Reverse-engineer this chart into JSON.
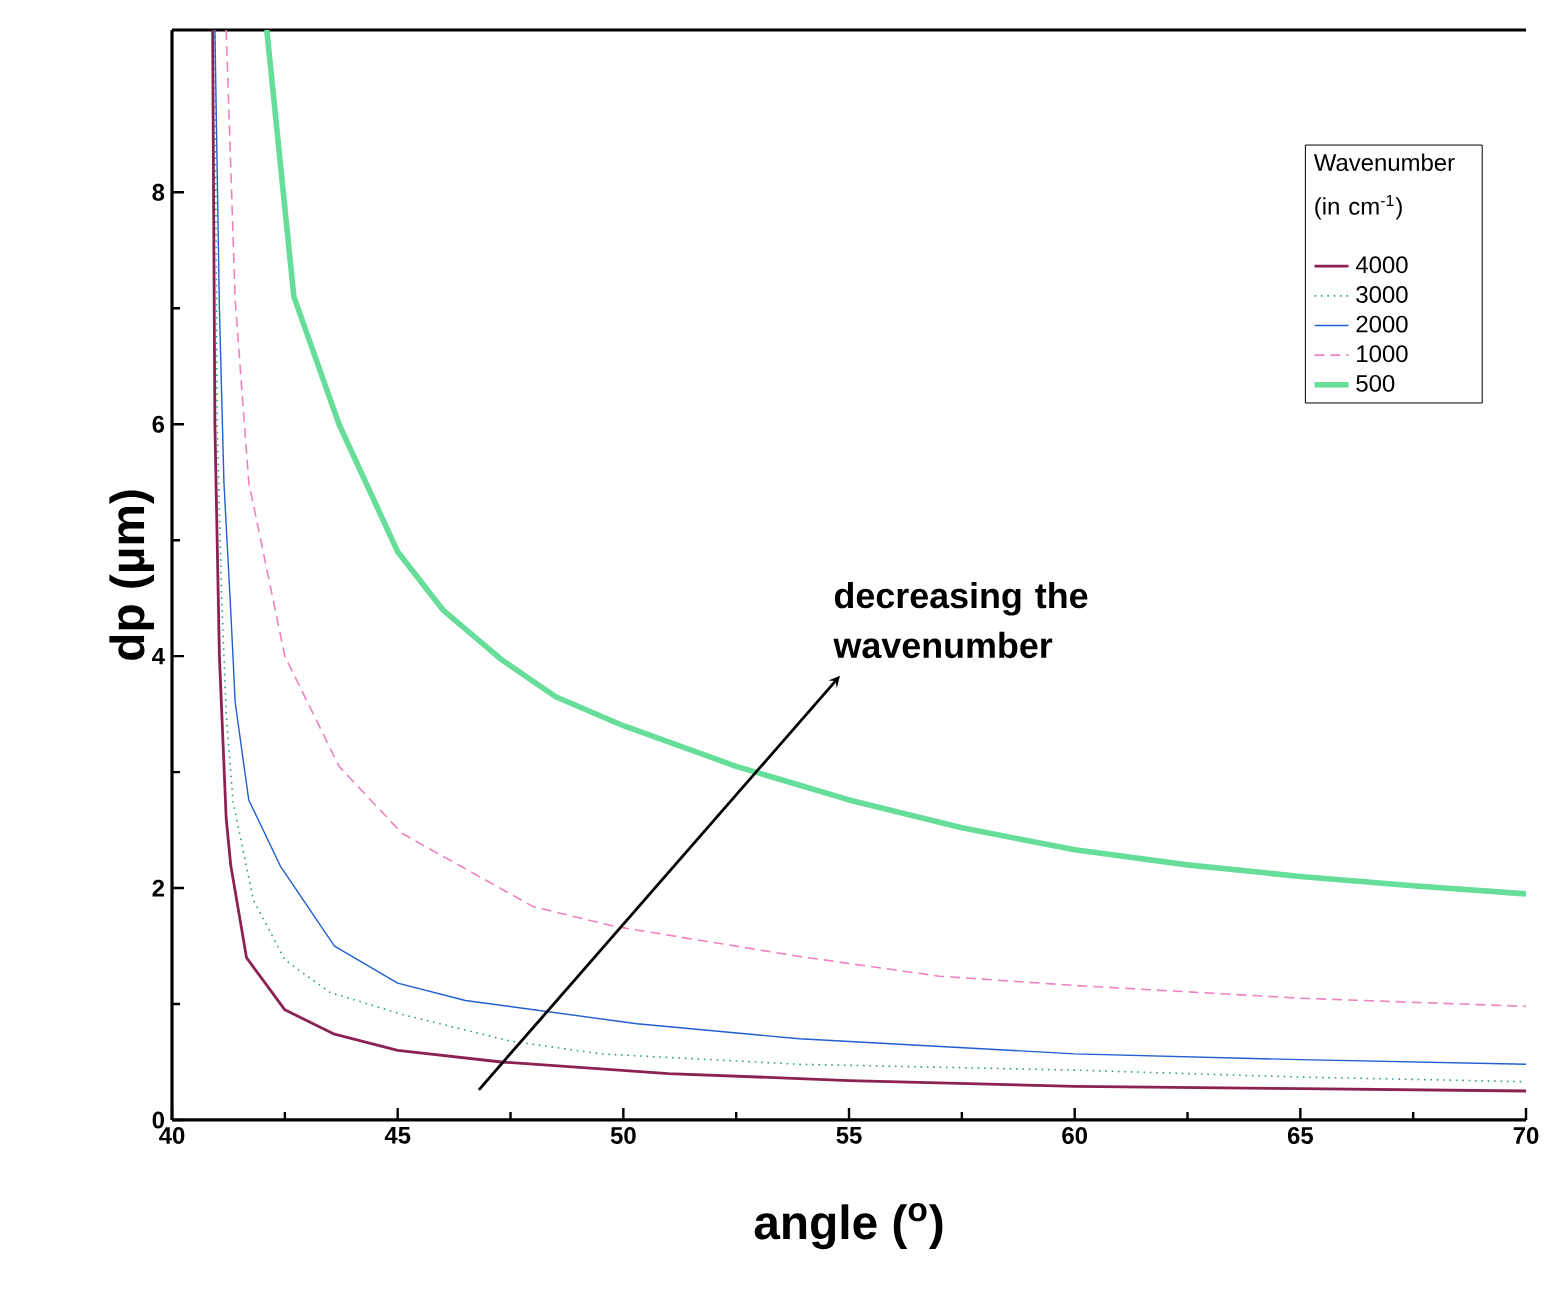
{
  "chart_data": {
    "type": "line",
    "xlabel": "angle ($^{o}$)",
    "ylabel": "dp (µm)",
    "legend_title": "Wavenumber (in cm$^{-1}$)",
    "xlim": [
      40,
      70
    ],
    "ylim": [
      0,
      9.4
    ],
    "xticks": [
      40,
      45,
      50,
      55,
      60,
      65,
      70
    ],
    "yticks": [
      0,
      2,
      4,
      6,
      8
    ],
    "grid": false,
    "legend": "top right",
    "marker": "none",
    "annotations": [
      "decreasing the wavenumber"
    ],
    "series": [
      {
        "name": "4000",
        "color": "#8b2252",
        "line_style": "solid",
        "x": [
          40.9,
          40.95,
          41.05,
          41.2,
          41.3,
          41.65,
          42.5,
          43.6,
          45,
          47.3,
          51,
          55,
          60,
          65,
          70
        ],
        "values": [
          9.4,
          6,
          4,
          2.6,
          2.2,
          1.4,
          0.95,
          0.74,
          0.6,
          0.5,
          0.4,
          0.34,
          0.29,
          0.27,
          0.25
        ]
      },
      {
        "name": "3000",
        "color": "#2a9d8f",
        "line_style": "dotted",
        "x": [
          40.95,
          41.0,
          41.1,
          41.2,
          41.35,
          41.8,
          42.5,
          43.5,
          45.1,
          47.5,
          49.5,
          53.9,
          60,
          65,
          70
        ],
        "values": [
          9.4,
          6,
          4.5,
          3.5,
          2.75,
          1.9,
          1.38,
          1.1,
          0.91,
          0.68,
          0.57,
          0.48,
          0.43,
          0.37,
          0.33
        ]
      },
      {
        "name": "2000",
        "color": "#1f5fd0",
        "line_style": "solid",
        "x": [
          40.95,
          41.05,
          41.15,
          41.3,
          41.4,
          41.7,
          42.4,
          43.6,
          45,
          46.5,
          50.3,
          53.9,
          60,
          65,
          70
        ],
        "values": [
          9.4,
          7,
          5.5,
          4.4,
          3.6,
          2.76,
          2.19,
          1.5,
          1.18,
          1.03,
          0.83,
          0.7,
          0.57,
          0.52,
          0.48
        ]
      },
      {
        "name": "1000",
        "color": "#f080c0",
        "line_style": "dashed",
        "x": [
          41.2,
          41.4,
          41.7,
          42.5,
          43.7,
          45.1,
          48,
          49.8,
          53.9,
          57,
          60,
          65,
          70
        ],
        "values": [
          9.4,
          7.07,
          5.5,
          4.0,
          3.05,
          2.47,
          1.84,
          1.67,
          1.41,
          1.24,
          1.16,
          1.05,
          0.98
        ]
      },
      {
        "name": "500",
        "color": "#66dd99",
        "line_style": "solid",
        "x": [
          42.1,
          42.7,
          43.7,
          45,
          46,
          47.3,
          48.5,
          50,
          52.5,
          55,
          57.5,
          60,
          62.5,
          65,
          67.5,
          70
        ],
        "values": [
          9.4,
          7.1,
          6.0,
          4.9,
          4.4,
          3.97,
          3.65,
          3.4,
          3.05,
          2.76,
          2.52,
          2.33,
          2.2,
          2.1,
          2.02,
          1.95
        ]
      }
    ]
  }
}
